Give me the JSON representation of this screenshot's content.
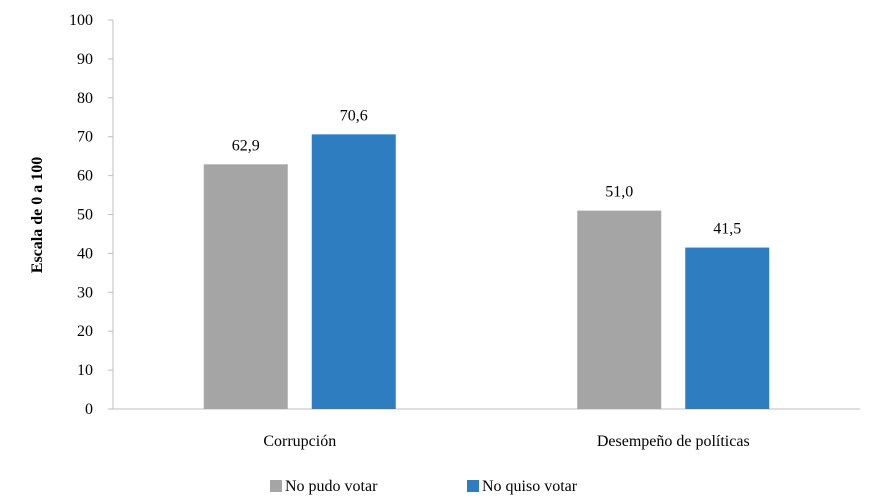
{
  "chart_data": {
    "type": "bar",
    "categories": [
      "Corrupción",
      "Desempeño de políticas"
    ],
    "series": [
      {
        "name": "No pudo votar",
        "values": [
          62.9,
          51.0
        ],
        "color": "#a5a5a5"
      },
      {
        "name": "No quiso votar",
        "values": [
          70.6,
          41.5
        ],
        "color": "#2e7dc0"
      }
    ],
    "data_labels": [
      [
        "62,9",
        "51,0"
      ],
      [
        "70,6",
        "41,5"
      ]
    ],
    "ylabel": "Escala de 0 a 100",
    "xlabel": "",
    "ylim": [
      0,
      100
    ],
    "yticks": [
      0,
      10,
      20,
      30,
      40,
      50,
      60,
      70,
      80,
      90,
      100
    ],
    "grid": false,
    "legend_position": "bottom"
  }
}
